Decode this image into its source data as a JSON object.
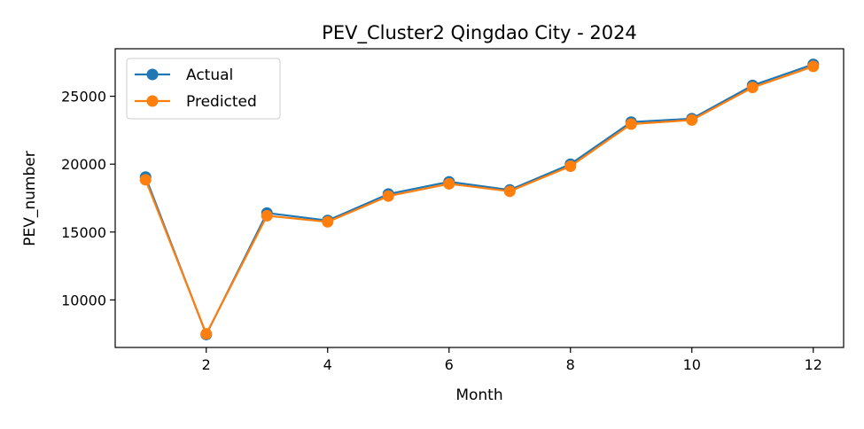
{
  "chart_data": {
    "type": "line",
    "title": "PEV_Cluster2 Qingdao City - 2024",
    "xlabel": "Month",
    "ylabel": "PEV_number",
    "xlim": [
      0.5,
      12.5
    ],
    "ylim": [
      6500,
      28500
    ],
    "xticks": [
      2,
      4,
      6,
      8,
      10,
      12
    ],
    "yticks": [
      10000,
      15000,
      20000,
      25000
    ],
    "grid": false,
    "legend_position": "upper-left",
    "x": [
      1,
      2,
      3,
      4,
      5,
      6,
      7,
      8,
      9,
      10,
      11,
      12
    ],
    "series": [
      {
        "name": "Actual",
        "color": "#1f77b4",
        "marker": "circle",
        "values": [
          19050,
          7450,
          16400,
          15850,
          17800,
          18700,
          18100,
          20000,
          23100,
          23350,
          25800,
          27350
        ]
      },
      {
        "name": "Predicted",
        "color": "#ff7f0e",
        "marker": "circle",
        "values": [
          18850,
          7500,
          16200,
          15750,
          17650,
          18550,
          18000,
          19850,
          22950,
          23250,
          25650,
          27200
        ]
      }
    ]
  }
}
